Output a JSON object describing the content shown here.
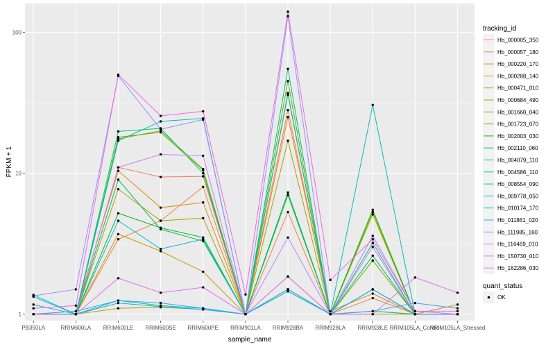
{
  "chart_data": {
    "type": "line",
    "xlabel": "sample_name",
    "ylabel": "FPKM + 1",
    "y_scale": "log10",
    "ylim": [
      0.9,
      160
    ],
    "y_ticks": [
      {
        "value": 1,
        "label": "1"
      },
      {
        "value": 10,
        "label": "10"
      },
      {
        "value": 100,
        "label": "100"
      }
    ],
    "categories": [
      "PB350LA",
      "RRIM600LA",
      "RRIM600LE",
      "RRIM600SE",
      "RRIM600PE",
      "RRIM901LA",
      "RRIM928BA",
      "RRIM928LA",
      "RRIM928LE",
      "RRIM105LA_Control",
      "RRIM105LA_Stressed"
    ],
    "legend_title": "tracking_id",
    "points_legend_title": "quant_status",
    "points_legend_label": "OK",
    "grid": true,
    "legend_position": "right",
    "series": [
      {
        "name": "Hb_000005_350",
        "color": "#F8766D",
        "values": [
          1.0,
          1.0,
          11.0,
          9.4,
          9.5,
          1.0,
          28.0,
          1.0,
          1.5,
          1.0,
          1.0
        ]
      },
      {
        "name": "Hb_000057_180",
        "color": "#EE8043",
        "values": [
          1.0,
          1.0,
          3.4,
          4.6,
          8.0,
          1.0,
          5.3,
          1.0,
          1.3,
          1.0,
          1.0
        ]
      },
      {
        "name": "Hb_000220_170",
        "color": "#E08B00",
        "values": [
          1.0,
          1.05,
          10.4,
          5.7,
          6.2,
          1.0,
          25.0,
          1.05,
          1.4,
          1.0,
          1.17
        ]
      },
      {
        "name": "Hb_000288_140",
        "color": "#CF9500",
        "values": [
          1.0,
          1.0,
          3.7,
          2.8,
          2.0,
          1.0,
          1.85,
          1.0,
          1.05,
          1.0,
          1.0
        ]
      },
      {
        "name": "Hb_000471_010",
        "color": "#BB9D00",
        "values": [
          1.0,
          1.0,
          1.1,
          1.12,
          1.08,
          1.0,
          1.5,
          1.0,
          1.0,
          1.0,
          1.0
        ]
      },
      {
        "name": "Hb_000684_490",
        "color": "#A3A500",
        "values": [
          1.0,
          1.0,
          7.7,
          4.6,
          4.8,
          1.0,
          17.0,
          1.0,
          5.1,
          1.0,
          1.0
        ]
      },
      {
        "name": "Hb_001660_040",
        "color": "#85AD00",
        "values": [
          1.0,
          1.0,
          17.5,
          20.0,
          10.7,
          1.0,
          36.0,
          1.0,
          5.3,
          1.0,
          1.0
        ]
      },
      {
        "name": "Hb_001723_070",
        "color": "#5BB300",
        "values": [
          1.0,
          1.0,
          18.0,
          19.5,
          10.5,
          1.0,
          45.0,
          1.0,
          2.4,
          1.0,
          1.0
        ]
      },
      {
        "name": "Hb_002003_030",
        "color": "#00B81F",
        "values": [
          1.0,
          1.0,
          5.2,
          4.1,
          3.5,
          1.0,
          7.3,
          1.0,
          5.5,
          1.0,
          1.0
        ]
      },
      {
        "name": "Hb_002110_060",
        "color": "#00BC59",
        "values": [
          1.0,
          1.0,
          9.0,
          4.0,
          3.3,
          1.0,
          7.0,
          1.0,
          2.6,
          1.0,
          1.0
        ]
      },
      {
        "name": "Hb_004079_110",
        "color": "#00BF7D",
        "values": [
          1.0,
          1.0,
          19.8,
          20.8,
          10.0,
          1.0,
          55.0,
          1.0,
          3.2,
          1.0,
          1.0
        ]
      },
      {
        "name": "Hb_004586_110",
        "color": "#00C19C",
        "values": [
          1.0,
          1.0,
          1.25,
          1.15,
          1.1,
          1.0,
          1.45,
          1.0,
          1.05,
          1.0,
          1.0
        ]
      },
      {
        "name": "Hb_008554_090",
        "color": "#00C0B8",
        "values": [
          1.17,
          1.0,
          17.0,
          23.3,
          24.5,
          1.0,
          37.0,
          1.0,
          30.5,
          1.0,
          1.0
        ]
      },
      {
        "name": "Hb_009778_050",
        "color": "#00BCD4",
        "values": [
          1.37,
          1.0,
          4.6,
          2.9,
          3.4,
          1.0,
          1.5,
          1.0,
          1.5,
          1.0,
          1.0
        ]
      },
      {
        "name": "Hb_010174_170",
        "color": "#00B5EE",
        "values": [
          1.33,
          1.0,
          1.2,
          1.13,
          1.08,
          1.0,
          1.5,
          1.0,
          1.5,
          1.0,
          1.0
        ]
      },
      {
        "name": "Hb_011861_020",
        "color": "#35A2FF",
        "values": [
          1.0,
          1.05,
          1.25,
          1.2,
          1.1,
          1.0,
          1.5,
          1.0,
          1.05,
          1.2,
          1.1
        ]
      },
      {
        "name": "Hb_111985_160",
        "color": "#9590FF",
        "values": [
          1.35,
          1.5,
          49.0,
          20.5,
          24.0,
          1.0,
          130.0,
          1.0,
          3.6,
          1.05,
          1.0
        ]
      },
      {
        "name": "Hb_116469_010",
        "color": "#C77CFF",
        "values": [
          1.0,
          1.0,
          11.0,
          13.6,
          13.3,
          1.0,
          3.5,
          1.0,
          3.0,
          1.0,
          1.0
        ]
      },
      {
        "name": "Hb_150730_010",
        "color": "#E26EF7",
        "values": [
          1.0,
          1.0,
          1.8,
          1.42,
          1.55,
          1.0,
          1.85,
          1.0,
          1.0,
          1.82,
          1.42
        ]
      },
      {
        "name": "Hb_162286_030",
        "color": "#F166E9",
        "values": [
          1.1,
          1.15,
          50.0,
          25.5,
          27.5,
          1.38,
          140.0,
          1.75,
          3.4,
          1.05,
          1.05
        ]
      }
    ]
  }
}
